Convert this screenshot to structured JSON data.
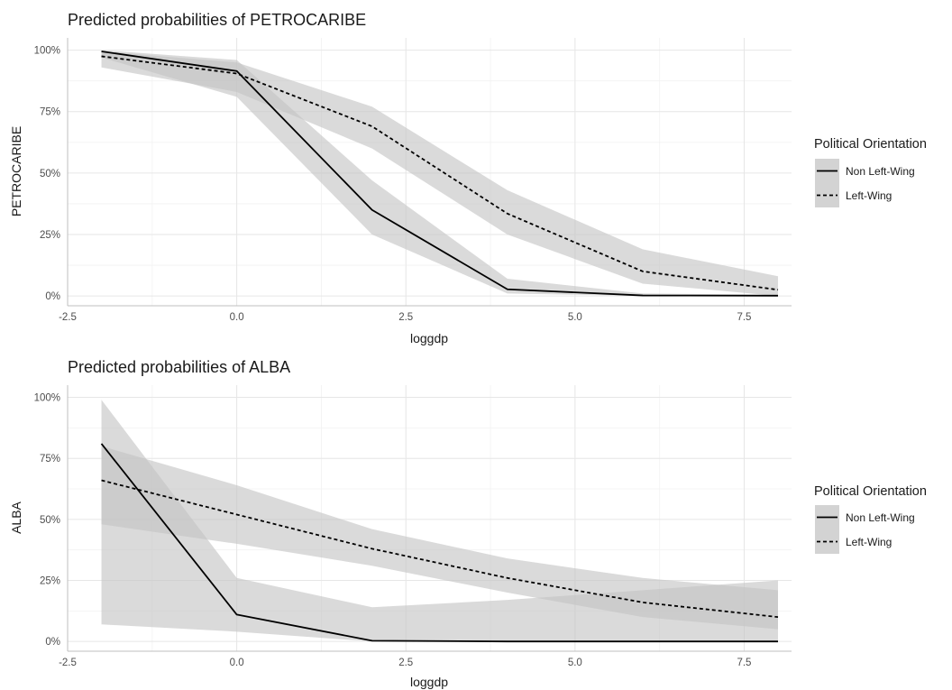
{
  "colors": {
    "ribbon": "#c4c4c4",
    "ribbon_opacity": 0.62,
    "line": "#000000",
    "grid_major": "#e6e6e6",
    "grid_minor": "#f2f2f2",
    "axis": "#bfbfbf"
  },
  "chart_data": [
    {
      "type": "line",
      "title": "Predicted probabilities of PETROCARIBE",
      "xlabel": "loggdp",
      "ylabel": "PETROCARIBE",
      "xlim": [
        -2.5,
        8.2
      ],
      "ylim": [
        -0.04,
        1.05
      ],
      "x_ticks": [
        -2.5,
        0,
        2.5,
        5,
        7.5
      ],
      "x_tick_labels": [
        "-2.5",
        "0.0",
        "2.5",
        "5.0",
        "7.5"
      ],
      "y_ticks": [
        0,
        0.25,
        0.5,
        0.75,
        1
      ],
      "y_tick_labels": [
        "0%",
        "25%",
        "50%",
        "75%",
        "100%"
      ],
      "grid": true,
      "legend": {
        "title": "Political Orientation",
        "placement": "right",
        "entries": [
          "Non Left-Wing",
          "Left-Wing"
        ]
      },
      "series": [
        {
          "name": "Non Left-Wing",
          "linestyle": "solid",
          "x": [
            -2,
            0,
            2,
            4,
            6,
            8
          ],
          "y": [
            0.995,
            0.915,
            0.35,
            0.027,
            0.002,
            0.001
          ],
          "lower": [
            0.97,
            0.81,
            0.25,
            0.01,
            0.0,
            0.0
          ],
          "upper": [
            1.0,
            0.96,
            0.47,
            0.07,
            0.01,
            0.005
          ]
        },
        {
          "name": "Left-Wing",
          "linestyle": "dashed",
          "x": [
            -2,
            0,
            2,
            4,
            6,
            8
          ],
          "y": [
            0.975,
            0.905,
            0.69,
            0.335,
            0.1,
            0.025
          ],
          "lower": [
            0.93,
            0.83,
            0.6,
            0.25,
            0.05,
            0.0
          ],
          "upper": [
            0.995,
            0.95,
            0.77,
            0.43,
            0.19,
            0.08
          ]
        }
      ]
    },
    {
      "type": "line",
      "title": "Predicted probabilities of ALBA",
      "xlabel": "loggdp",
      "ylabel": "ALBA",
      "xlim": [
        -2.5,
        8.2
      ],
      "ylim": [
        -0.04,
        1.05
      ],
      "x_ticks": [
        -2.5,
        0,
        2.5,
        5,
        7.5
      ],
      "x_tick_labels": [
        "-2.5",
        "0.0",
        "2.5",
        "5.0",
        "7.5"
      ],
      "y_ticks": [
        0,
        0.25,
        0.5,
        0.75,
        1
      ],
      "y_tick_labels": [
        "0%",
        "25%",
        "50%",
        "75%",
        "100%"
      ],
      "grid": true,
      "legend": {
        "title": "Political Orientation",
        "placement": "right",
        "entries": [
          "Non Left-Wing",
          "Left-Wing"
        ]
      },
      "series": [
        {
          "name": "Non Left-Wing",
          "linestyle": "solid",
          "x": [
            -2,
            0,
            2,
            4,
            6,
            8
          ],
          "y": [
            0.81,
            0.11,
            0.003,
            0.0,
            0.0,
            0.0
          ],
          "lower": [
            0.07,
            0.04,
            0.0,
            0.0,
            0.0,
            0.0
          ],
          "upper": [
            0.99,
            0.26,
            0.14,
            0.17,
            0.21,
            0.25
          ]
        },
        {
          "name": "Left-Wing",
          "linestyle": "dashed",
          "x": [
            -2,
            0,
            2,
            4,
            6,
            8
          ],
          "y": [
            0.66,
            0.52,
            0.38,
            0.26,
            0.16,
            0.1
          ],
          "lower": [
            0.48,
            0.4,
            0.31,
            0.2,
            0.1,
            0.05
          ],
          "upper": [
            0.8,
            0.64,
            0.46,
            0.34,
            0.26,
            0.21
          ]
        }
      ]
    }
  ]
}
